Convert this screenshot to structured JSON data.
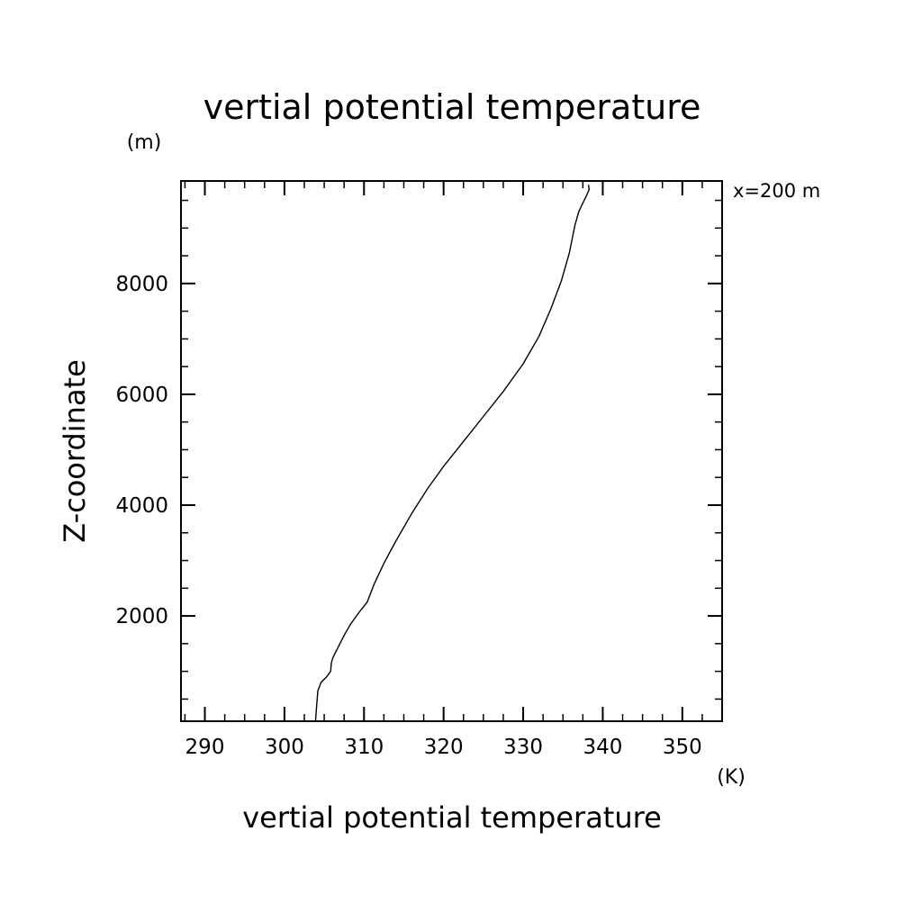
{
  "chart_data": {
    "type": "line",
    "title": "vertial potential temperature",
    "xlabel": "vertial potential temperature",
    "ylabel": "Z-coordinate",
    "x_unit": "(K)",
    "y_unit": "(m)",
    "annotation": "x=200 m",
    "xlim": [
      287,
      355
    ],
    "ylim": [
      100,
      9850
    ],
    "x_ticks": [
      {
        "value": 290,
        "label": "290"
      },
      {
        "value": 300,
        "label": "300"
      },
      {
        "value": 310,
        "label": "310"
      },
      {
        "value": 320,
        "label": "320"
      },
      {
        "value": 330,
        "label": "330"
      },
      {
        "value": 340,
        "label": "340"
      },
      {
        "value": 350,
        "label": "350"
      }
    ],
    "y_ticks": [
      {
        "value": 2000,
        "label": "2000"
      },
      {
        "value": 4000,
        "label": "4000"
      },
      {
        "value": 6000,
        "label": "6000"
      },
      {
        "value": 8000,
        "label": "8000"
      }
    ],
    "x_minor_step": 2.5,
    "y_minor_step": 500,
    "grid": false,
    "series": [
      {
        "x": [
          303.9,
          304.0,
          304.2,
          304.6,
          305.3,
          305.8,
          305.9,
          306.1,
          306.8,
          307.5,
          308.3,
          309.3,
          310.4,
          310.8,
          311.2,
          312.5,
          314.0,
          316.0,
          318.0,
          320.0,
          322.5,
          325.0,
          327.5,
          330.0,
          332.0,
          333.5,
          334.8,
          335.8,
          336.5,
          337.0,
          337.5,
          338.0,
          338.3,
          338.2
        ],
        "y": [
          100,
          300,
          650,
          800,
          900,
          1000,
          1150,
          1250,
          1450,
          1650,
          1850,
          2050,
          2250,
          2400,
          2550,
          2950,
          3350,
          3850,
          4300,
          4700,
          5150,
          5600,
          6050,
          6550,
          7050,
          7550,
          8050,
          8550,
          9050,
          9300,
          9450,
          9600,
          9700,
          9780
        ]
      }
    ]
  }
}
